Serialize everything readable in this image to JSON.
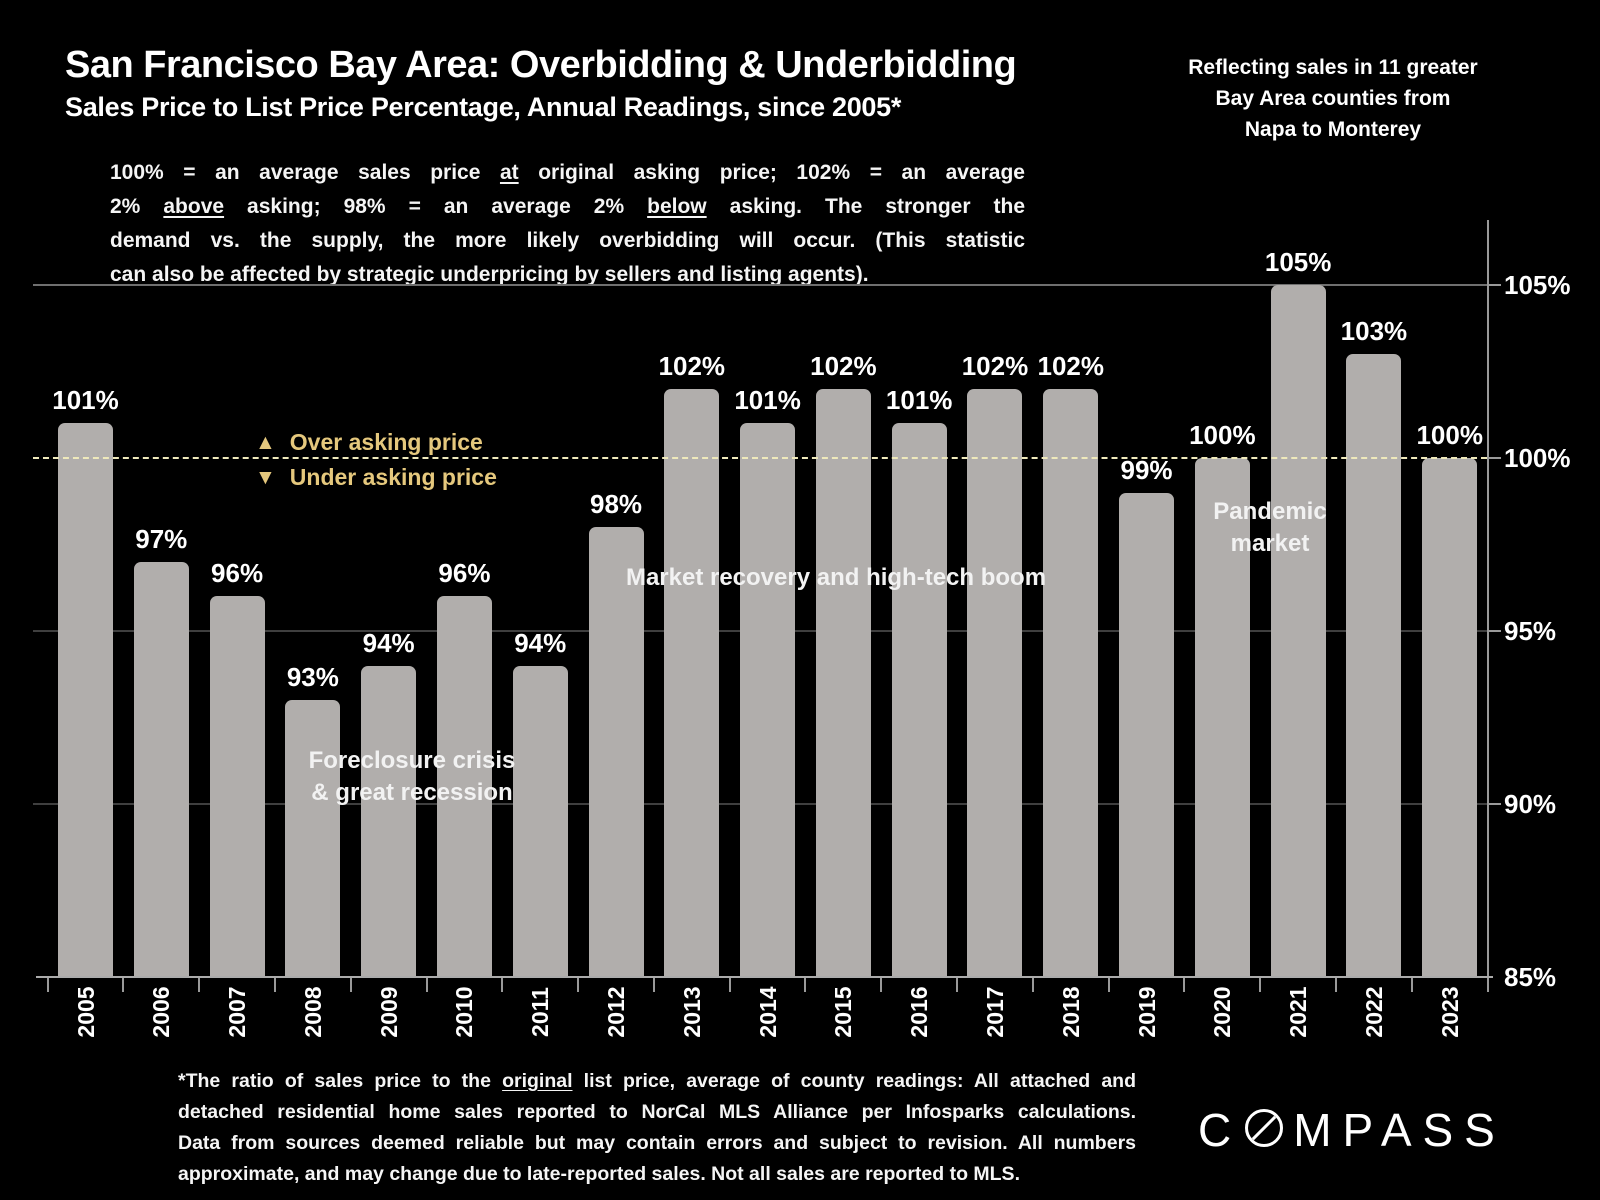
{
  "header": {
    "title": "San Francisco Bay Area: Overbidding & Underbidding",
    "subtitle": "Sales Price to List Price Percentage, Annual Readings, since 2005*",
    "coverage_note_lines": [
      "Reflecting sales in 11 greater",
      "Bay Area counties from",
      "Napa to Monterey"
    ]
  },
  "intro_lines": [
    [
      {
        "t": "100% = an average sales price "
      },
      {
        "t": "at",
        "u": true
      },
      {
        "t": " original asking price; 102% = an average"
      }
    ],
    [
      {
        "t": "2% "
      },
      {
        "t": "above",
        "u": true
      },
      {
        "t": " asking; 98% = an average 2% "
      },
      {
        "t": "below",
        "u": true
      },
      {
        "t": " asking. The stronger the"
      }
    ],
    [
      {
        "t": "demand vs. the supply, the more likely overbidding will occur. (This statistic"
      }
    ],
    [
      {
        "t": "can also be affected by strategic underpricing by sellers and listing agents)."
      }
    ]
  ],
  "chart_data": {
    "type": "bar",
    "title": "San Francisco Bay Area: Overbidding & Underbidding — Sales Price to List Price Percentage, Annual Readings, since 2005",
    "categories": [
      "2005",
      "2006",
      "2007",
      "2008",
      "2009",
      "2010",
      "2011",
      "2012",
      "2013",
      "2014",
      "2015",
      "2016",
      "2017",
      "2018",
      "2019",
      "2020",
      "2021",
      "2022",
      "2023"
    ],
    "values": [
      101,
      97,
      96,
      93,
      94,
      96,
      94,
      98,
      102,
      101,
      102,
      101,
      102,
      102,
      99,
      100,
      105,
      103,
      100
    ],
    "bar_labels": [
      "101%",
      "97%",
      "96%",
      "93%",
      "94%",
      "96%",
      "94%",
      "98%",
      "102%",
      "101%",
      "102%",
      "101%",
      "102%",
      "102%",
      "99%",
      "100%",
      "105%",
      "103%",
      "100%"
    ],
    "ylim": [
      85,
      107
    ],
    "yticks": [
      85,
      90,
      95,
      100,
      105
    ],
    "ytick_labels": [
      "85%",
      "90%",
      "95%",
      "100%",
      "105%"
    ],
    "grid": "horizontal",
    "legend_position": "inside-upper-left",
    "reference_line": {
      "value": 100,
      "style": "dashed"
    },
    "legend": {
      "items": [
        {
          "symbol": "▲",
          "label": "Over asking price"
        },
        {
          "symbol": "▼",
          "label": "Under asking price"
        }
      ]
    },
    "annotations": [
      {
        "id": "foreclosure",
        "lines": [
          "Foreclosure crisis",
          "& great recession"
        ]
      },
      {
        "id": "recovery",
        "lines": [
          "Market recovery and high-tech boom"
        ]
      },
      {
        "id": "pandemic",
        "lines": [
          "Pandemic",
          "market"
        ]
      }
    ],
    "colors": {
      "bar": "#b1aeac",
      "bar_label": "#ffffff",
      "legend_gold": "#e5c87d",
      "reference_line": "#efe9bb",
      "gridline": "#3f3f3f",
      "gridline_top": "#6f6f6f",
      "axis": "#9a9a9a"
    }
  },
  "footnote_lines": [
    [
      {
        "t": "*The ratio of sales price to the "
      },
      {
        "t": "original",
        "u": true
      },
      {
        "t": " list price, average of county readings: All attached and"
      }
    ],
    [
      {
        "t": "detached residential home sales reported to NorCal MLS Alliance per Infosparks calculations."
      }
    ],
    [
      {
        "t": "Data from sources deemed reliable but may contain errors and subject to revision. All numbers"
      }
    ],
    [
      {
        "t": "approximate, and may change due to late-reported sales. Not all sales are reported to MLS."
      }
    ]
  ],
  "logo": {
    "c": "C",
    "rest": "MPASS",
    "alt": "COMPASS"
  }
}
